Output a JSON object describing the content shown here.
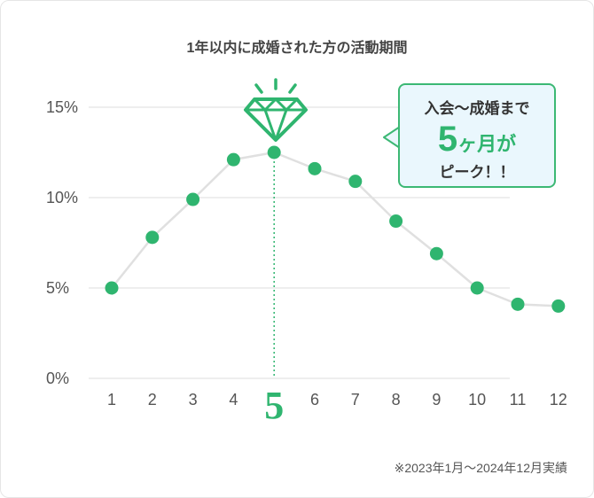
{
  "title": "1年以内に成婚された方の活動期間",
  "callout": {
    "line1": "入会〜成婚まで",
    "line2_big": "5",
    "line2_small": "ヶ月が",
    "line3": "ピーク！！"
  },
  "footnote": "※2023年1月〜2024年12月実績",
  "peak_icon": "diamond-icon",
  "colors": {
    "accent": "#2fb56f",
    "line": "#e0e0e0",
    "grid": "#e3e3e3",
    "callout_bg": "#eaf7fd"
  },
  "chart_data": {
    "type": "line",
    "x": [
      1,
      2,
      3,
      4,
      5,
      6,
      7,
      8,
      9,
      10,
      11,
      12
    ],
    "x_labels": [
      "1",
      "2",
      "3",
      "4",
      "5",
      "6",
      "7",
      "8",
      "9",
      "10",
      "11",
      "12"
    ],
    "values": [
      5.0,
      7.8,
      9.9,
      12.1,
      12.5,
      11.6,
      10.9,
      8.7,
      6.9,
      5.0,
      4.1,
      4.0
    ],
    "y_ticks": [
      "0%",
      "5%",
      "10%",
      "15%"
    ],
    "y_tick_values": [
      0,
      5,
      10,
      15
    ],
    "ylim": [
      0,
      15
    ],
    "highlight_x": 5,
    "grid": true,
    "legend": "none"
  }
}
